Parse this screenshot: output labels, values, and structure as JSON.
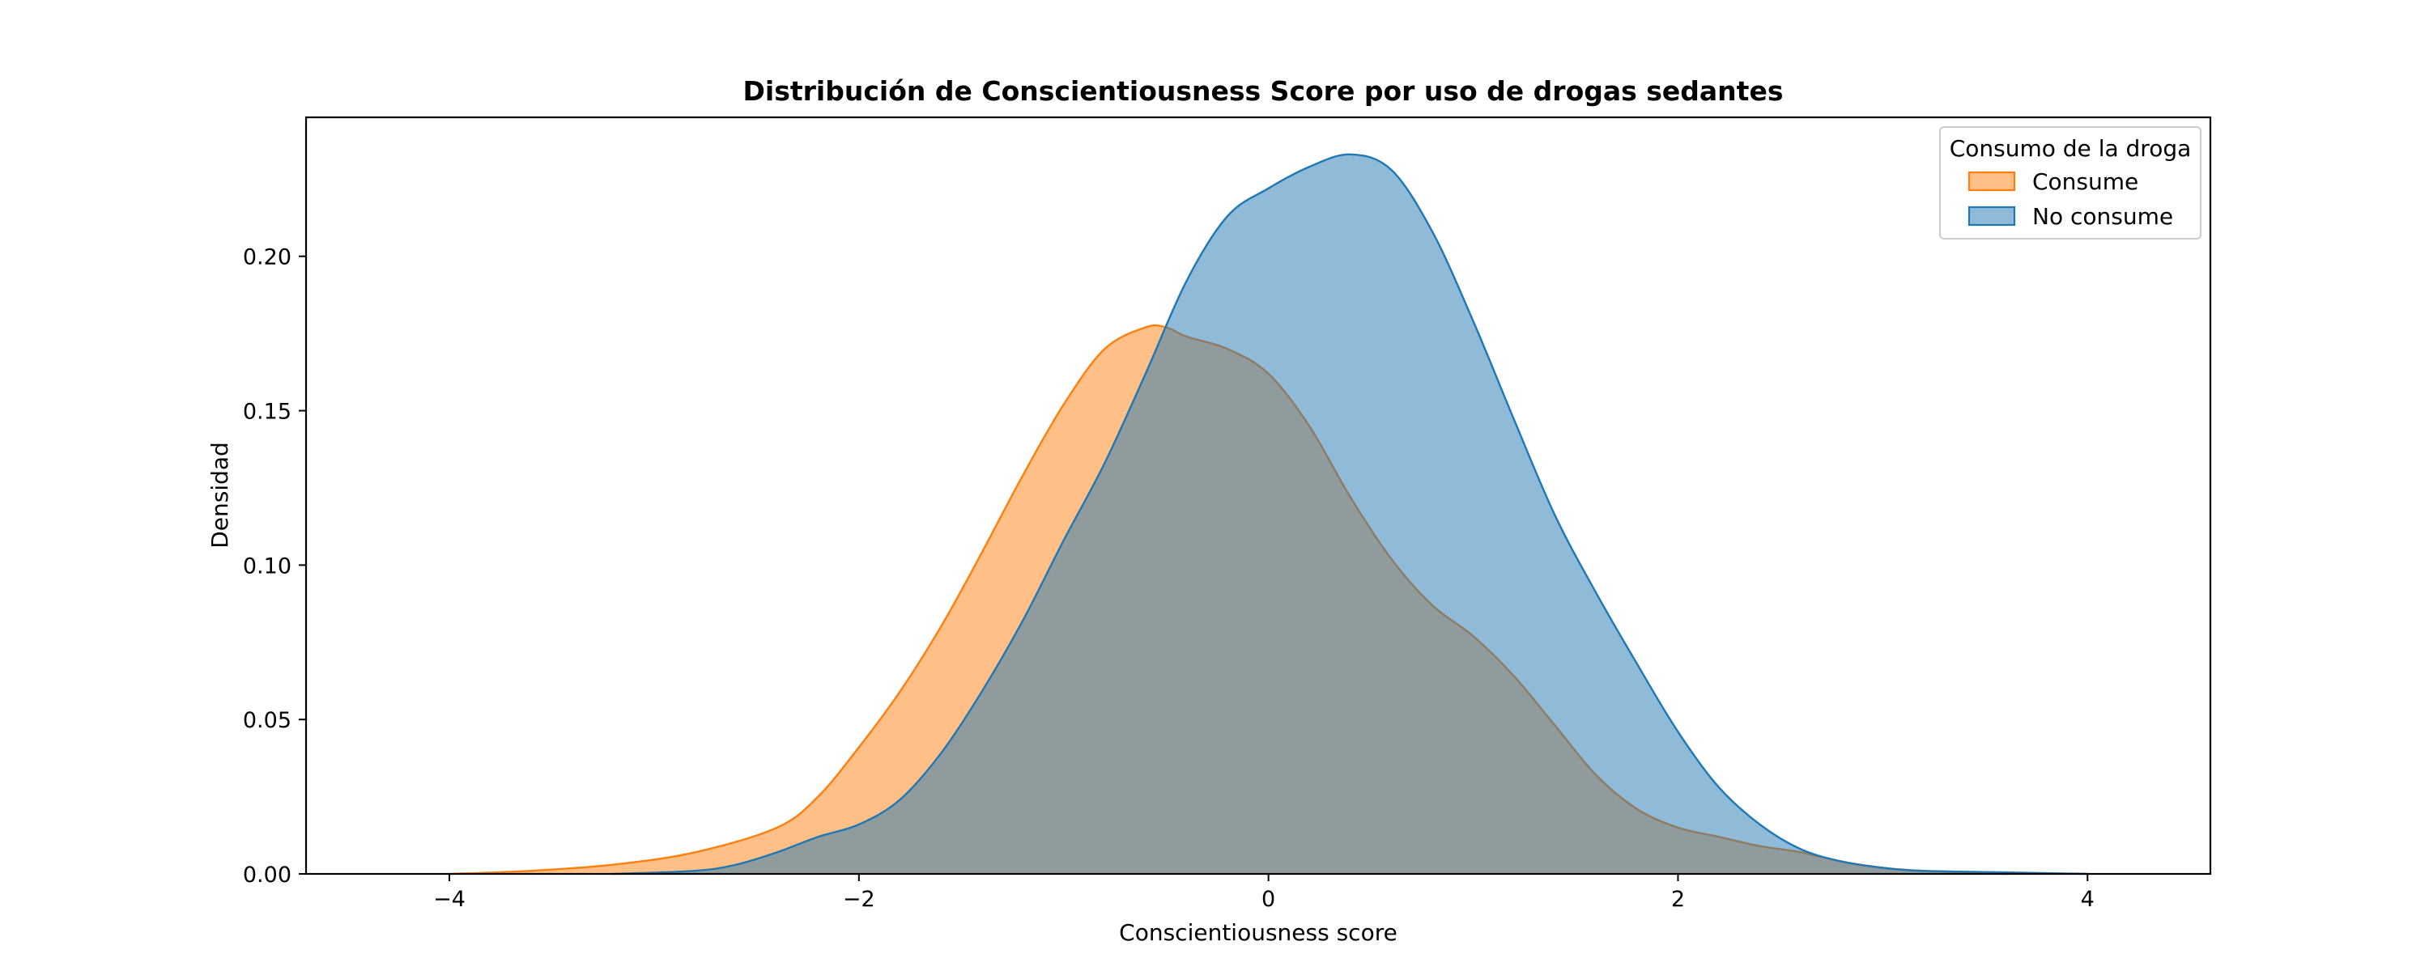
{
  "chart_data": {
    "type": "area",
    "title": "Distribución de Conscientiousness Score por uso de drogas sedantes",
    "xlabel": "Conscientiousness score",
    "ylabel": "Densidad",
    "xlim": [
      -4.7,
      4.6
    ],
    "ylim": [
      0,
      0.245
    ],
    "x_ticks": [
      -4,
      -2,
      0,
      2,
      4
    ],
    "x_tick_labels": [
      "−4",
      "−2",
      "0",
      "2",
      "4"
    ],
    "y_ticks": [
      0.0,
      0.05,
      0.1,
      0.15,
      0.2
    ],
    "y_tick_labels": [
      "0.00",
      "0.05",
      "0.10",
      "0.15",
      "0.20"
    ],
    "grid": false,
    "legend": {
      "title": "Consumo de la droga",
      "placement": "upper-right"
    },
    "series": [
      {
        "name": "Consume",
        "color": "#ff7f0e",
        "fill_opacity": 0.5,
        "points": [
          [
            -4.0,
            0.0
          ],
          [
            -3.6,
            0.001
          ],
          [
            -3.2,
            0.003
          ],
          [
            -2.8,
            0.007
          ],
          [
            -2.4,
            0.015
          ],
          [
            -2.2,
            0.025
          ],
          [
            -2.0,
            0.041
          ],
          [
            -1.8,
            0.059
          ],
          [
            -1.6,
            0.08
          ],
          [
            -1.4,
            0.104
          ],
          [
            -1.2,
            0.129
          ],
          [
            -1.0,
            0.152
          ],
          [
            -0.8,
            0.17
          ],
          [
            -0.6,
            0.177
          ],
          [
            -0.5,
            0.177
          ],
          [
            -0.4,
            0.174
          ],
          [
            -0.2,
            0.17
          ],
          [
            0.0,
            0.162
          ],
          [
            0.2,
            0.145
          ],
          [
            0.4,
            0.122
          ],
          [
            0.6,
            0.102
          ],
          [
            0.8,
            0.087
          ],
          [
            1.0,
            0.077
          ],
          [
            1.2,
            0.064
          ],
          [
            1.4,
            0.048
          ],
          [
            1.6,
            0.032
          ],
          [
            1.8,
            0.021
          ],
          [
            2.0,
            0.015
          ],
          [
            2.2,
            0.012
          ],
          [
            2.4,
            0.009
          ],
          [
            2.6,
            0.007
          ],
          [
            2.8,
            0.004
          ],
          [
            3.0,
            0.002
          ],
          [
            3.2,
            0.001
          ],
          [
            3.6,
            0.0
          ]
        ]
      },
      {
        "name": "No consume",
        "color": "#1f77b4",
        "fill_opacity": 0.5,
        "points": [
          [
            -3.2,
            0.0
          ],
          [
            -2.8,
            0.001
          ],
          [
            -2.6,
            0.003
          ],
          [
            -2.4,
            0.007
          ],
          [
            -2.2,
            0.012
          ],
          [
            -2.0,
            0.016
          ],
          [
            -1.8,
            0.024
          ],
          [
            -1.6,
            0.039
          ],
          [
            -1.4,
            0.059
          ],
          [
            -1.2,
            0.082
          ],
          [
            -1.0,
            0.108
          ],
          [
            -0.8,
            0.133
          ],
          [
            -0.6,
            0.162
          ],
          [
            -0.4,
            0.192
          ],
          [
            -0.2,
            0.213
          ],
          [
            0.0,
            0.222
          ],
          [
            0.2,
            0.229
          ],
          [
            0.4,
            0.233
          ],
          [
            0.6,
            0.228
          ],
          [
            0.8,
            0.208
          ],
          [
            1.0,
            0.179
          ],
          [
            1.2,
            0.147
          ],
          [
            1.4,
            0.116
          ],
          [
            1.6,
            0.091
          ],
          [
            1.8,
            0.068
          ],
          [
            2.0,
            0.046
          ],
          [
            2.2,
            0.028
          ],
          [
            2.4,
            0.016
          ],
          [
            2.6,
            0.008
          ],
          [
            2.8,
            0.004
          ],
          [
            3.0,
            0.002
          ],
          [
            3.2,
            0.001
          ],
          [
            3.6,
            0.0005
          ],
          [
            4.0,
            0.0
          ]
        ]
      }
    ]
  }
}
